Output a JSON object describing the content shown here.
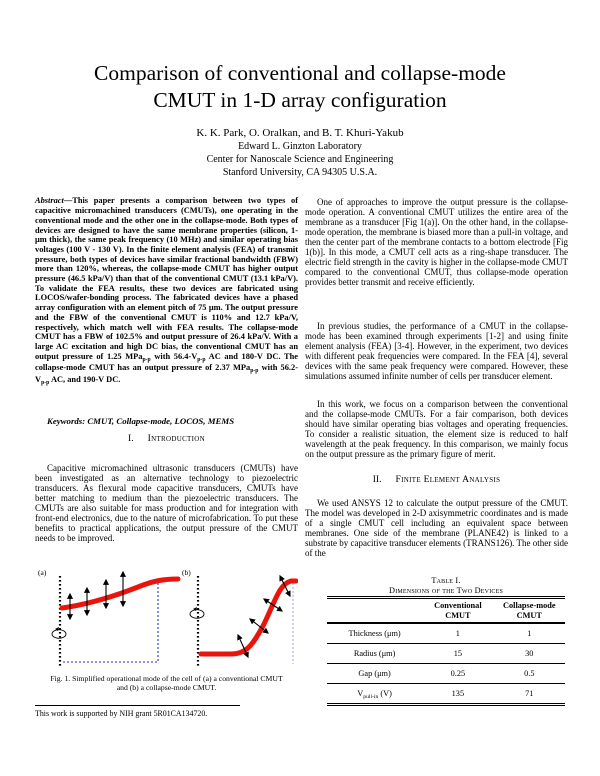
{
  "header": {
    "title_line1": "Comparison of conventional and collapse-mode",
    "title_line2": "CMUT in 1-D array configuration",
    "authors": "K. K. Park, O. Oralkan, and B. T. Khuri-Yakub",
    "affiliation1": "Edward L. Ginzton Laboratory",
    "affiliation2": "Center for Nanoscale Science and Engineering",
    "affiliation3": "Stanford University, CA 94305 U.S.A."
  },
  "abstract": {
    "segments": [
      {
        "t": "Abstract",
        "i": 1
      },
      {
        "t": "—This paper presents a comparison between two types of capacitive micromachined transducers (CMUTs), one operating in the conventional mode and the other one in the collapse-mode. Both types of devices are designed to have the same membrane properties (silicon, 1-μm thick), the same peak frequency (10 MHz) and similar operating bias voltages (100 V - 130 V). In the finite element analysis (FEA) of transmit pressure, both types of devices have similar fractional bandwidth (FBW) more than 120%, whereas, the collapse-mode CMUT has higher output pressure (46.5 kPa/V) than that of the conventional CMUT (13.1 kPa/V). To validate the FEA results, these two devices are fabricated using LOCOS/wafer-bonding process. The fabricated devices have a phased array configuration with an element pitch of 75 μm.  The output pressure and the FBW of the conventional CMUT is 110% and 12.7 kPa/V, respectively, which match well with FEA results. The collapse-mode CMUT has a FBW of 102.5% and output pressure of 26.4 kPa/V. With a large AC excitation and high DC bias, the conventional CMUT has an output pressure of 1.25 MPa"
      },
      {
        "t": "p-p",
        "sub": 1
      },
      {
        "t": " with 56.4-V"
      },
      {
        "t": "p-p",
        "sub": 1
      },
      {
        "t": " AC and 180-V DC. The collapse-mode CMUT has an output pressure of 2.37 MPa"
      },
      {
        "t": "p-p",
        "sub": 1
      },
      {
        "t": " with 56.2-V"
      },
      {
        "t": "p-p",
        "sub": 1
      },
      {
        "t": " AC, and 190-V DC."
      }
    ]
  },
  "keywords": "Keywords: CMUT, Collapse-mode, LOCOS, MEMS",
  "sections": {
    "s1_num": "I.",
    "s1_title": "Introduction",
    "s2_num": "II.",
    "s2_title": "Finite Element Analysis"
  },
  "paragraphs": {
    "intro": "Capacitive micromachined ultrasonic transducers (CMUTs) have been investigated as an alternative technology to piezoelectric transducers. As flexural mode capacitive transducers, CMUTs have better matching to medium than the piezoelectric transducers. The CMUTs are also suitable for mass production and for integration with front-end electronics, due to the nature of microfabrication. To put these benefits to practical applications, the output pressure of the CMUT needs to be improved.",
    "right1": "One of approaches to improve the output pressure is the collapse-mode operation. A conventional CMUT utilizes the entire area of the membrane as a transducer [Fig 1(a)]. On the other hand, in the collapse-mode operation, the membrane is biased more than a pull-in voltage, and then the center part of the membrane contacts to a bottom electrode [Fig 1(b)]. In this mode, a CMUT cell acts as a ring-shape transducer. The electric field strength in the cavity is higher in the collapse-mode CMUT compared to the conventional CMUT, thus collapse-mode operation provides better transmit and receive efficiently.",
    "right2": "In previous studies, the performance of a CMUT in the collapse-mode has been examined through experiments [1-2] and using finite element analysis (FEA) [3-4]. However, in the experiment, two devices with different peak frequencies were compared. In the FEA [4], several devices with the same peak frequency were compared. However, these simulations assumed infinite number of cells per transducer element.",
    "right3": "In this work, we focus on a comparison between the conventional and the collapse-mode CMUTs. For a fair comparison, both devices should have similar operating bias voltages and operating frequencies. To consider a realistic situation, the element size is reduced to half wavelength at the peak frequency. In this comparison, we mainly focus on the output pressure as the primary figure of merit.",
    "right4": "We used ANSYS 12 to calculate the output pressure of the CMUT. The model was developed in 2-D axisymmetric coordinates and is made of a single CMUT cell including an equivalent space between membranes. One side of the membrane (PLANE42) is linked to a substrate by capacitive transducer elements (TRANS126). The other side of the"
  },
  "figure1": {
    "panel_a_label": "(a)",
    "panel_b_label": "(b)",
    "caption": "Fig. 1. Simplified operational mode of the cell of (a) a conventional CMUT and  (b) a collapse-mode CMUT.",
    "membrane_color": "#e8150d",
    "cavity_outline_color": "#2a2ad2",
    "collapse_guide_color": "#9c9ce8",
    "arrow_color": "#000000"
  },
  "table1": {
    "label": "Table I.",
    "caption": "Dimensions of the Two Devices",
    "col1": "Conventional CMUT",
    "col2": "Collapse-mode CMUT",
    "rows": [
      {
        "name": "Thickness (μm)",
        "conv": "1",
        "coll": "1"
      },
      {
        "name": "Radius (μm)",
        "conv": "15",
        "coll": "30"
      },
      {
        "name": "Gap (μm)",
        "conv": "0.25",
        "coll": "0.5"
      },
      {
        "name_segments": [
          {
            "t": "V"
          },
          {
            "t": "pull-in",
            "sub": 1
          },
          {
            "t": " (V)"
          }
        ],
        "conv": "135",
        "coll": "71"
      }
    ]
  },
  "footnote": "This work is supported by NIH grant 5R01CA134720."
}
